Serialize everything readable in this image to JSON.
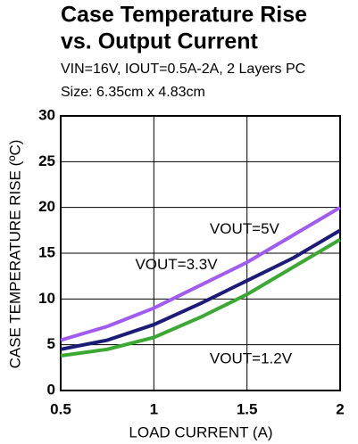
{
  "chart_data": {
    "type": "line",
    "title": [
      "Case Temperature Rise",
      "vs. Output Current"
    ],
    "subtitle": [
      "VIN=16V, IOUT=0.5A-2A, 2 Layers PC",
      "Size: 6.35cm x 4.83cm"
    ],
    "x_label": "LOAD CURRENT (A)",
    "y_label": "CASE TEMPERATURE RISE (ºC)",
    "x": [
      0.5,
      0.75,
      1,
      1.25,
      1.5,
      1.75,
      2
    ],
    "series": [
      {
        "name": "VOUT=5V",
        "color": "#a05cf0",
        "values": [
          5.5,
          7,
          9,
          11.5,
          14,
          17,
          20
        ]
      },
      {
        "name": "VOUT=3.3V",
        "color": "#1c1c78",
        "values": [
          4.5,
          5.5,
          7.2,
          9.5,
          12,
          14.5,
          17.5
        ]
      },
      {
        "name": "VOUT=1.2V",
        "color": "#3aa832",
        "values": [
          3.8,
          4.5,
          5.8,
          8,
          10.5,
          13.5,
          16.5
        ]
      }
    ],
    "xlim": [
      0.5,
      2
    ],
    "xticks": [
      0.5,
      1,
      1.5,
      2
    ],
    "ylim": [
      0,
      30
    ],
    "yticks": [
      0,
      5,
      10,
      15,
      20,
      25,
      30
    ],
    "grid": true
  }
}
